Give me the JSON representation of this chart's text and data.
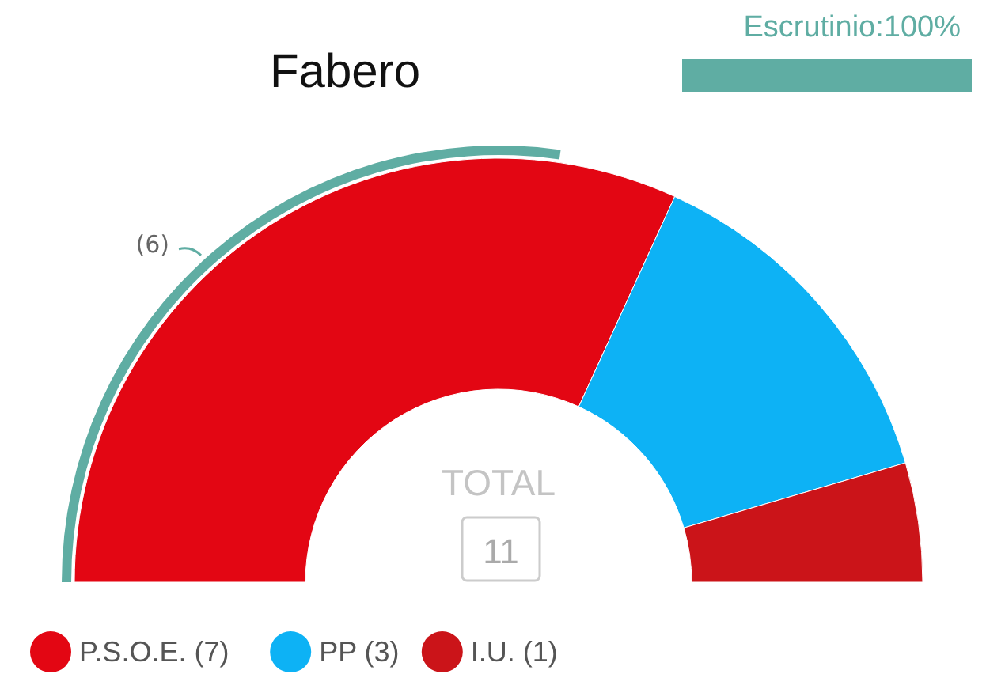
{
  "chart_data": {
    "type": "donut",
    "title": "Fabero",
    "categories": [
      "P.S.O.E. (7)",
      "PP (3)",
      "I.U. (1)"
    ],
    "values": [
      7,
      3,
      1
    ],
    "colors": [
      "#e30613",
      "#0db2f5",
      "#cb1419"
    ],
    "annotations": [
      "Escrutinio:100%",
      "TOTAL",
      "11",
      "(6)"
    ],
    "legend": "bottom left"
  }
}
